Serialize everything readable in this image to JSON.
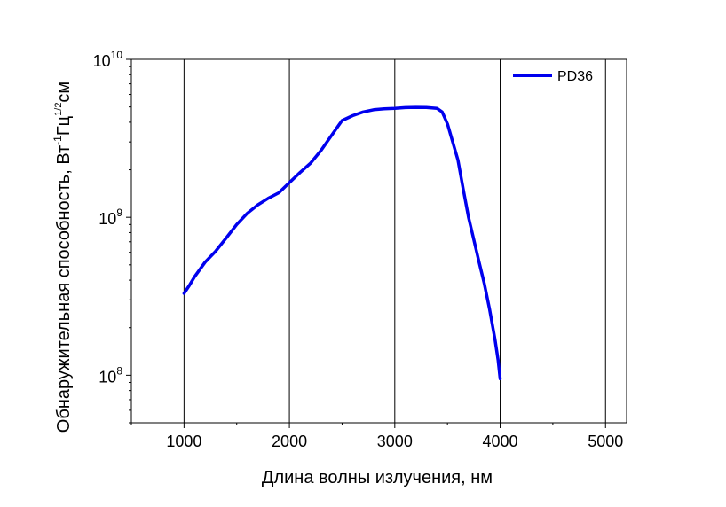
{
  "chart_data": {
    "type": "line",
    "title": "",
    "xlabel": "Длина волны излучения, нм",
    "ylabel": {
      "main": "Обнаружительная способность, Вт",
      "sup1": "-1",
      "mid": "Гц",
      "sup2": "1/2",
      "end": "см"
    },
    "xlim": [
      500,
      5200
    ],
    "ylim": [
      50000000,
      10000000000
    ],
    "yscale": "log",
    "x_ticks": [
      1000,
      2000,
      3000,
      4000,
      5000
    ],
    "x_tick_labels": [
      "1000",
      "2000",
      "3000",
      "4000",
      "5000"
    ],
    "y_ticks": [
      {
        "value": 100000000,
        "base": "10",
        "exp": "8"
      },
      {
        "value": 1000000000,
        "base": "10",
        "exp": "9"
      },
      {
        "value": 10000000000,
        "base": "10",
        "exp": "10"
      }
    ],
    "grid": "vertical",
    "legend": "top-right",
    "series": [
      {
        "name": "PD36",
        "color": "#0000ee",
        "x": [
          1000,
          1050,
          1100,
          1200,
          1300,
          1400,
          1500,
          1600,
          1700,
          1800,
          1900,
          2000,
          2100,
          2200,
          2300,
          2400,
          2500,
          2600,
          2700,
          2800,
          2900,
          3000,
          3100,
          3200,
          3300,
          3400,
          3450,
          3500,
          3550,
          3600,
          3650,
          3700,
          3750,
          3800,
          3850,
          3900,
          3950,
          3980,
          4000
        ],
        "y": [
          330000000,
          370000000,
          420000000,
          520000000,
          610000000,
          740000000,
          900000000,
          1060000000,
          1200000000,
          1320000000,
          1430000000,
          1660000000,
          1920000000,
          2200000000,
          2650000000,
          3300000000,
          4100000000,
          4400000000,
          4650000000,
          4800000000,
          4870000000,
          4900000000,
          4950000000,
          4970000000,
          4960000000,
          4900000000,
          4650000000,
          3900000000,
          3000000000,
          2300000000,
          1500000000,
          1000000000,
          720000000,
          520000000,
          380000000,
          260000000,
          170000000,
          125000000,
          95000000
        ]
      }
    ]
  }
}
